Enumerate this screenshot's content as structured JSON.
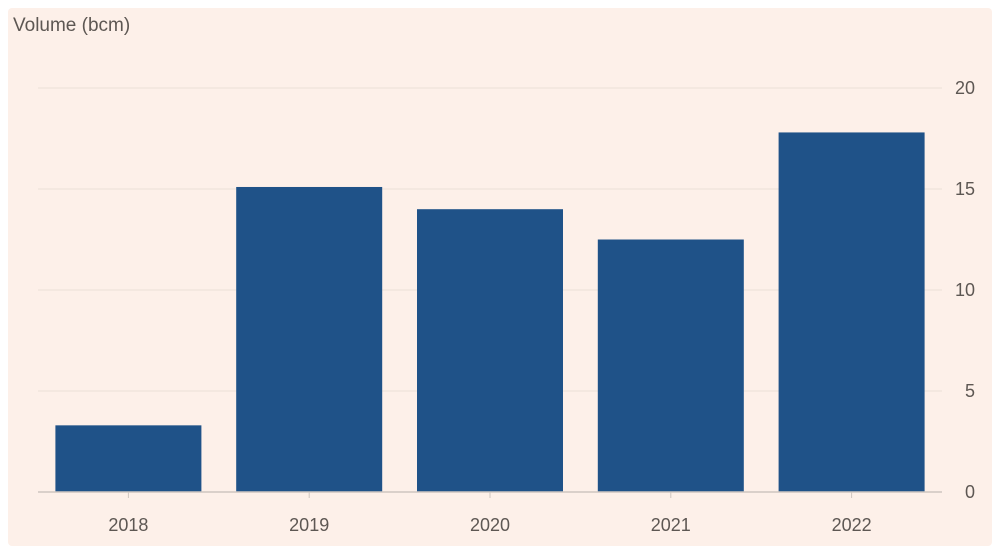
{
  "chart_data": {
    "type": "bar",
    "ylabel": "Volume (bcm)",
    "categories": [
      "2018",
      "2019",
      "2020",
      "2021",
      "2022"
    ],
    "values": [
      3.3,
      15.1,
      14.0,
      12.5,
      17.8
    ],
    "ylim": [
      0,
      20
    ],
    "yticks": [
      0,
      5,
      10,
      15,
      20
    ],
    "y_axis_side": "right",
    "grid": true,
    "colors": {
      "bar": "#1f5288",
      "grid": "#ece0d8",
      "axis": "#cfc6c0",
      "background": "#fdf0e9"
    }
  }
}
